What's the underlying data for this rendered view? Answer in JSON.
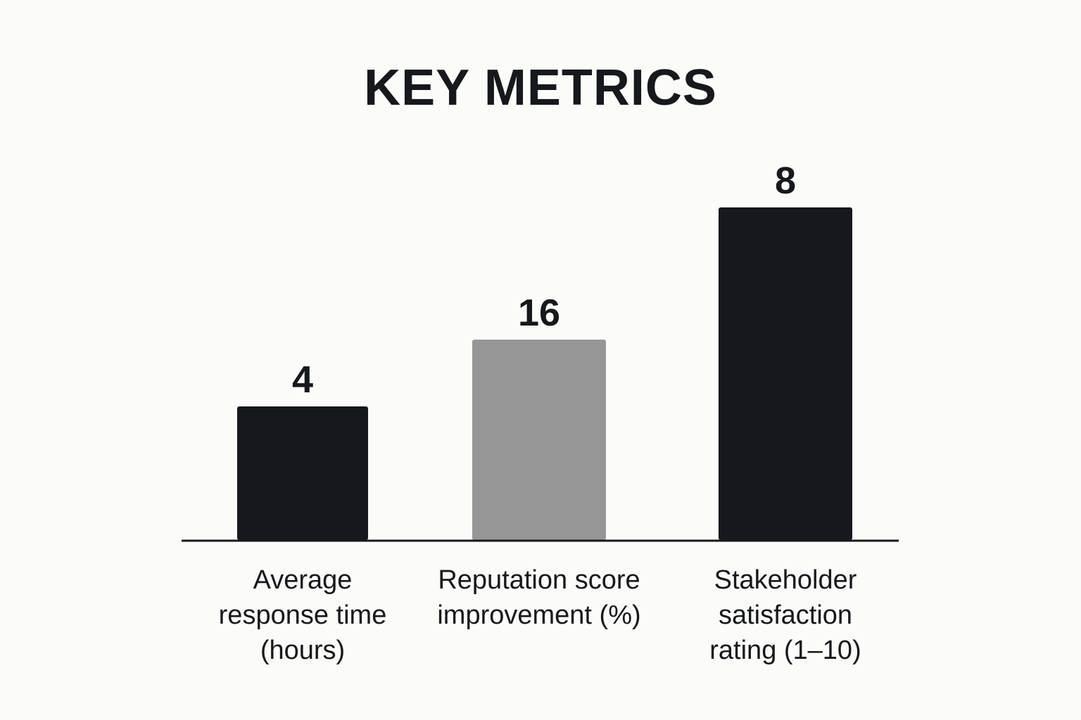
{
  "chart_data": {
    "type": "bar",
    "title": "KEY METRICS",
    "categories": [
      "Average response time (hours)",
      "Reputation score improvement (%)",
      "Stakeholder satisfaction rating (1–10)"
    ],
    "category_lines": [
      [
        "Average",
        "response time",
        "(hours)"
      ],
      [
        "Reputation score",
        "improvement (%)"
      ],
      [
        "Stakeholder",
        "satisfaction",
        "rating (1–10)"
      ]
    ],
    "values": [
      4,
      16,
      8
    ],
    "value_labels": [
      "4",
      "16",
      "8"
    ],
    "bar_colors": [
      "#15181c",
      "#969696",
      "#15181c"
    ],
    "grid": false,
    "legend": "none"
  }
}
